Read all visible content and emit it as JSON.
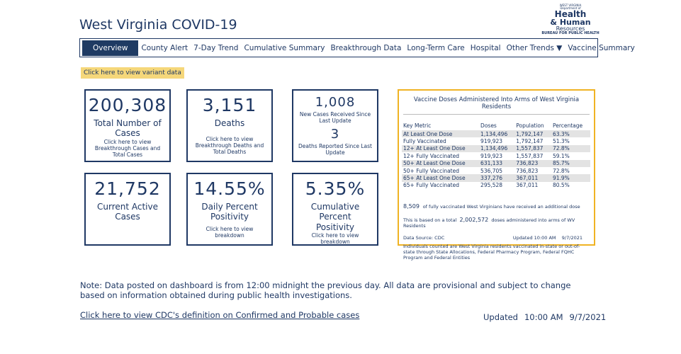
{
  "header": {
    "title": "West Virginia COVID-19",
    "logo": [
      "WEST VIRGINIA",
      "Department of",
      "Health",
      "& Human",
      "Resources",
      "BUREAU FOR PUBLIC HEALTH"
    ]
  },
  "nav": [
    "Overview",
    "County Alert",
    "7-Day Trend",
    "Cumulative Summary",
    "Breakthrough Data",
    "Long-Term Care",
    "Hospital",
    "Other Trends ▼",
    "Vaccine Summary"
  ],
  "variant_link": "Click here to view variant data",
  "cards": [
    {
      "items": [
        {
          "value": "200,308",
          "label": "Total Number of Cases"
        }
      ],
      "link": "Click here to view Breakthrough Cases and Total Cases"
    },
    {
      "items": [
        {
          "value": "3,151",
          "label": "Deaths"
        }
      ],
      "link": "Click here to view Breakthrough Deaths and Total Deaths"
    },
    {
      "items": [
        {
          "value": "1,008",
          "label": "New Cases Received Since Last Update"
        },
        {
          "value": "3",
          "label": "Deaths Reported Since Last Update"
        }
      ]
    },
    {
      "items": [
        {
          "value": "21,752",
          "label": "Current Active Cases"
        }
      ]
    },
    {
      "items": [
        {
          "value": "14.55%",
          "label": "Daily Percent Positivity"
        }
      ],
      "link": "Click here to view breakdown"
    },
    {
      "items": [
        {
          "value": "5.35%",
          "label": "Cumulative Percent Positivity"
        }
      ],
      "link": "Click here to view breakdown"
    }
  ],
  "vaccine_table": {
    "title": "Vaccine Doses Administered Into Arms of West Virginia Residents",
    "columns": [
      "Key Metric",
      "Doses",
      "Population",
      "Percentage"
    ],
    "rows": [
      [
        "At Least One Dose",
        "1,134,496",
        "1,792,147",
        "63.3%"
      ],
      [
        "Fully Vaccinated",
        "919,923",
        "1,792,147",
        "51.3%"
      ],
      [
        "12+ At Least One Dose",
        "1,134,496",
        "1,557,837",
        "72.8%"
      ],
      [
        "12+ Fully Vaccinated",
        "919,923",
        "1,557,837",
        "59.1%"
      ],
      [
        "50+ At Least One Dose",
        "631,133",
        "736,823",
        "85.7%"
      ],
      [
        "50+ Fully Vaccinated",
        "536,705",
        "736,823",
        "72.8%"
      ],
      [
        "65+ At Least One Dose",
        "337,276",
        "367,011",
        "91.9%"
      ],
      [
        "65+ Fully Vaccinated",
        "295,528",
        "367,011",
        "80.5%"
      ]
    ],
    "additional_value": "8,509",
    "additional_text": "of fully vaccinated West Virginians have received an additional dose",
    "total_prefix": "This is based on a total",
    "total_value": "2,002,572",
    "total_suffix": "doses administered into arms of WV Residents",
    "source": "Data Source: CDC",
    "updated_label": "Updated",
    "updated_time": "10:00 AM",
    "updated_date": "9/7/2021",
    "note": "Individuals counted are West Virginia residents vaccinated in-state or out-of-state through State Allocations, Federal Pharmacy Program, Federal FQHC Program and Federal Entities"
  },
  "footer": {
    "note": "Note: Data posted on dashboard is from 12:00 midnight the previous day. All data are provisional and subject to change based on information obtained during public health investigations.",
    "link": "Click here to view CDC's definition on Confirmed and Probable cases",
    "updated_label": "Updated",
    "updated_time": "10:00 AM",
    "updated_date": "9/7/2021"
  }
}
